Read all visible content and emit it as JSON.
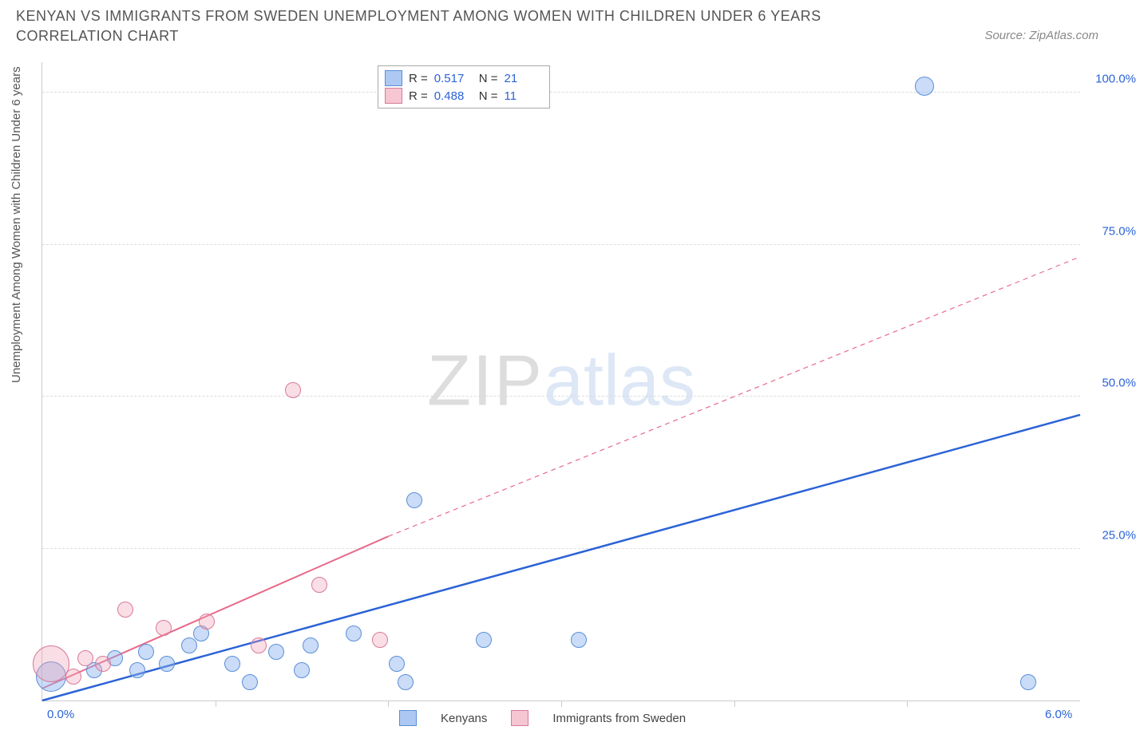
{
  "title": "KENYAN VS IMMIGRANTS FROM SWEDEN UNEMPLOYMENT AMONG WOMEN WITH CHILDREN UNDER 6 YEARS CORRELATION CHART",
  "source": "Source: ZipAtlas.com",
  "yaxis_title": "Unemployment Among Women with Children Under 6 years",
  "watermark_a": "ZIP",
  "watermark_b": "atlas",
  "chart": {
    "type": "scatter",
    "xlim": [
      0,
      6.0
    ],
    "ylim": [
      0,
      105
    ],
    "x_ticks": [
      1.0,
      2.0,
      3.0,
      4.0,
      5.0
    ],
    "x_labels": [
      {
        "val": 0.0,
        "text": "0.0%"
      },
      {
        "val": 6.0,
        "text": "6.0%"
      }
    ],
    "y_labels": [
      {
        "val": 25,
        "text": "25.0%"
      },
      {
        "val": 50,
        "text": "50.0%"
      },
      {
        "val": 75,
        "text": "75.0%"
      },
      {
        "val": 100,
        "text": "100.0%"
      }
    ],
    "y_grid": [
      25,
      50,
      75,
      100
    ],
    "series": [
      {
        "name": "Kenyans",
        "color_fill": "rgba(137,177,238,0.45)",
        "color_stroke": "#5a8fd8",
        "css": "blue",
        "stats": {
          "R": "0.517",
          "N": "21"
        },
        "trend": {
          "x1": 0.0,
          "y1": 0,
          "x2": 6.0,
          "y2": 47,
          "stroke": "#2b63d6",
          "width": 2.5,
          "dash": "none"
        },
        "points": [
          {
            "x": 0.05,
            "y": 4,
            "r": 18
          },
          {
            "x": 0.3,
            "y": 5,
            "r": 9
          },
          {
            "x": 0.42,
            "y": 7,
            "r": 9
          },
          {
            "x": 0.55,
            "y": 5,
            "r": 9
          },
          {
            "x": 0.6,
            "y": 8,
            "r": 9
          },
          {
            "x": 0.72,
            "y": 6,
            "r": 9
          },
          {
            "x": 0.85,
            "y": 9,
            "r": 9
          },
          {
            "x": 0.92,
            "y": 11,
            "r": 9
          },
          {
            "x": 1.1,
            "y": 6,
            "r": 9
          },
          {
            "x": 1.2,
            "y": 3,
            "r": 9
          },
          {
            "x": 1.35,
            "y": 8,
            "r": 9
          },
          {
            "x": 1.5,
            "y": 5,
            "r": 9
          },
          {
            "x": 1.55,
            "y": 9,
            "r": 9
          },
          {
            "x": 1.8,
            "y": 11,
            "r": 9
          },
          {
            "x": 2.05,
            "y": 6,
            "r": 9
          },
          {
            "x": 2.1,
            "y": 3,
            "r": 9
          },
          {
            "x": 2.15,
            "y": 33,
            "r": 9
          },
          {
            "x": 2.55,
            "y": 10,
            "r": 9
          },
          {
            "x": 3.1,
            "y": 10,
            "r": 9
          },
          {
            "x": 5.1,
            "y": 101,
            "r": 11
          },
          {
            "x": 5.7,
            "y": 3,
            "r": 9
          }
        ]
      },
      {
        "name": "Immigrants from Sweden",
        "color_fill": "rgba(240,160,180,0.35)",
        "color_stroke": "#d87a9a",
        "css": "pink",
        "stats": {
          "R": "0.488",
          "N": "11"
        },
        "trend_solid": {
          "x1": 0.0,
          "y1": 2,
          "x2": 2.0,
          "y2": 27,
          "stroke": "#e86a8a",
          "width": 2,
          "dash": "none"
        },
        "trend_dashed": {
          "x1": 2.0,
          "y1": 27,
          "x2": 6.0,
          "y2": 73,
          "stroke": "#e86a8a",
          "width": 1.2,
          "dash": "6,5"
        },
        "points": [
          {
            "x": 0.05,
            "y": 6,
            "r": 22
          },
          {
            "x": 0.18,
            "y": 4,
            "r": 9
          },
          {
            "x": 0.25,
            "y": 7,
            "r": 9
          },
          {
            "x": 0.35,
            "y": 6,
            "r": 9
          },
          {
            "x": 0.48,
            "y": 15,
            "r": 9
          },
          {
            "x": 0.7,
            "y": 12,
            "r": 9
          },
          {
            "x": 0.95,
            "y": 13,
            "r": 9
          },
          {
            "x": 1.25,
            "y": 9,
            "r": 9
          },
          {
            "x": 1.45,
            "y": 51,
            "r": 9
          },
          {
            "x": 1.6,
            "y": 19,
            "r": 9
          },
          {
            "x": 1.95,
            "y": 10,
            "r": 9
          }
        ]
      }
    ],
    "legend": [
      {
        "swatch": "blue",
        "label": "Kenyans"
      },
      {
        "swatch": "pink",
        "label": "Immigrants from Sweden"
      }
    ]
  }
}
